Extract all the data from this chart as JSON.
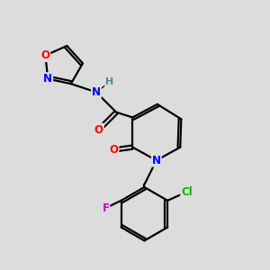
{
  "background_color": "#dcdcdc",
  "atom_colors": {
    "O": "#ff0000",
    "N": "#0000ff",
    "Cl": "#00bb00",
    "F": "#cc00cc",
    "H": "#4a9090",
    "C": "#000000"
  },
  "bond_color": "#000000",
  "bond_width": 1.6,
  "figsize": [
    3.0,
    3.0
  ],
  "dpi": 100
}
